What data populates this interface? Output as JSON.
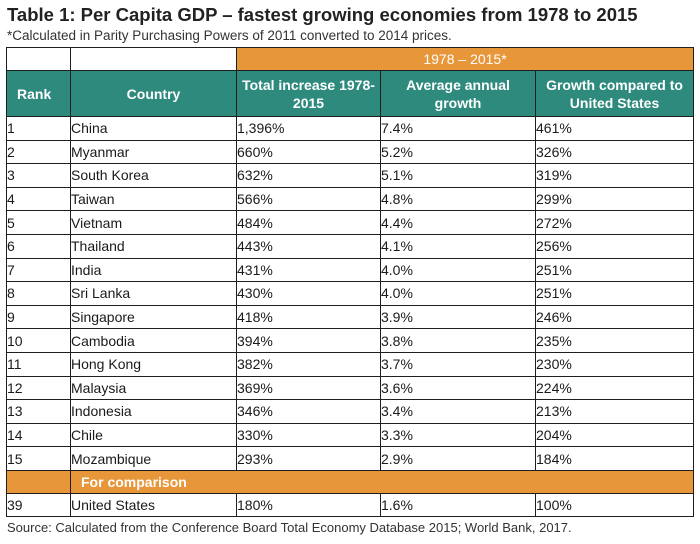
{
  "title": "Table 1: Per Capita GDP – fastest growing economies from 1978 to 2015",
  "subtitle": "*Calculated in Parity Purchasing Powers of 2011 converted to 2014 prices.",
  "group_header": "1978 – 2015*",
  "columns": {
    "rank": "Rank",
    "country": "Country",
    "total": "Total increase 1978-2015",
    "annual": "Average annual growth",
    "vs_us": "Growth compared to United States"
  },
  "rows": [
    {
      "rank": "1",
      "country": "China",
      "total": "1,396%",
      "annual": "7.4%",
      "vs_us": "461%"
    },
    {
      "rank": "2",
      "country": "Myanmar",
      "total": "660%",
      "annual": "5.2%",
      "vs_us": "326%"
    },
    {
      "rank": "3",
      "country": "South Korea",
      "total": "632%",
      "annual": "5.1%",
      "vs_us": "319%"
    },
    {
      "rank": "4",
      "country": "Taiwan",
      "total": "566%",
      "annual": "4.8%",
      "vs_us": "299%"
    },
    {
      "rank": "5",
      "country": "Vietnam",
      "total": "484%",
      "annual": "4.4%",
      "vs_us": "272%"
    },
    {
      "rank": "6",
      "country": "Thailand",
      "total": "443%",
      "annual": "4.1%",
      "vs_us": "256%"
    },
    {
      "rank": "7",
      "country": "India",
      "total": "431%",
      "annual": "4.0%",
      "vs_us": "251%"
    },
    {
      "rank": "8",
      "country": "Sri Lanka",
      "total": "430%",
      "annual": "4.0%",
      "vs_us": "251%"
    },
    {
      "rank": "9",
      "country": "Singapore",
      "total": "418%",
      "annual": "3.9%",
      "vs_us": "246%"
    },
    {
      "rank": "10",
      "country": "Cambodia",
      "total": "394%",
      "annual": "3.8%",
      "vs_us": "235%"
    },
    {
      "rank": "11",
      "country": "Hong Kong",
      "total": "382%",
      "annual": "3.7%",
      "vs_us": "230%"
    },
    {
      "rank": "12",
      "country": "Malaysia",
      "total": "369%",
      "annual": "3.6%",
      "vs_us": "224%"
    },
    {
      "rank": "13",
      "country": "Indonesia",
      "total": "346%",
      "annual": "3.4%",
      "vs_us": "213%"
    },
    {
      "rank": "14",
      "country": "Chile",
      "total": "330%",
      "annual": "3.3%",
      "vs_us": "204%"
    },
    {
      "rank": "15",
      "country": "Mozambique",
      "total": "293%",
      "annual": "2.9%",
      "vs_us": "184%"
    }
  ],
  "comparison_label": "For comparison",
  "comparison_row": {
    "rank": "39",
    "country": "United States",
    "total": "180%",
    "annual": "1.6%",
    "vs_us": "100%"
  },
  "source": "Source: Calculated from the Conference Board Total Economy Database 2015; World Bank, 2017.",
  "colors": {
    "header_teal": "#2f8a7e",
    "accent_orange": "#e8963a"
  }
}
